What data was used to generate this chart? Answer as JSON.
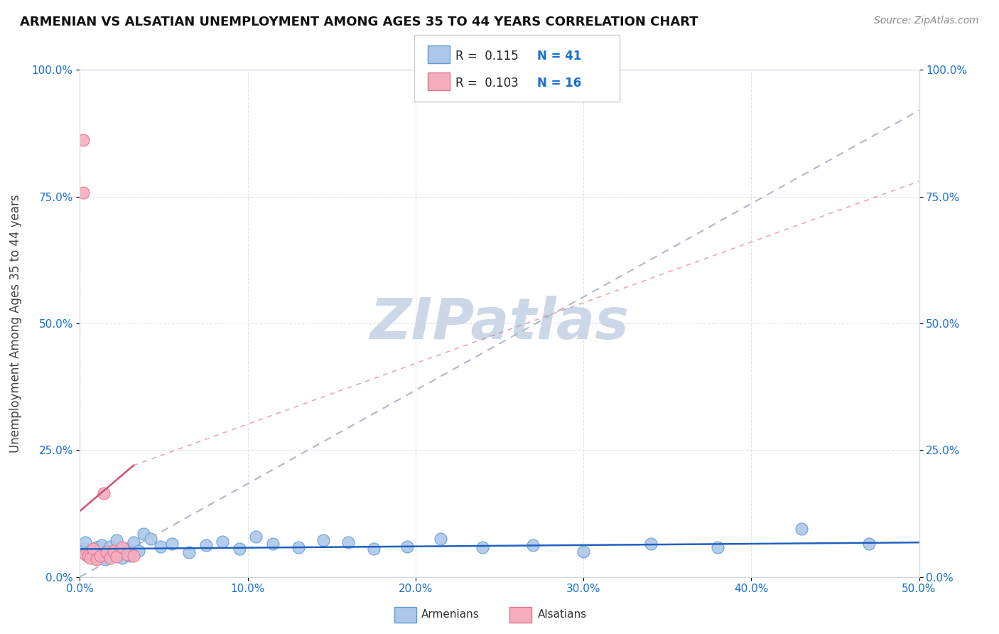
{
  "title": "ARMENIAN VS ALSATIAN UNEMPLOYMENT AMONG AGES 35 TO 44 YEARS CORRELATION CHART",
  "source": "Source: ZipAtlas.com",
  "ylabel": "Unemployment Among Ages 35 to 44 years",
  "xlim": [
    0.0,
    0.5
  ],
  "ylim": [
    0.0,
    1.0
  ],
  "xticks": [
    0.0,
    0.1,
    0.2,
    0.3,
    0.4,
    0.5
  ],
  "xticklabels": [
    "0.0%",
    "10.0%",
    "20.0%",
    "30.0%",
    "40.0%",
    "50.0%"
  ],
  "yticks": [
    0.0,
    0.25,
    0.5,
    0.75,
    1.0
  ],
  "yticklabels": [
    "0.0%",
    "25.0%",
    "50.0%",
    "75.0%",
    "100.0%"
  ],
  "right_yticklabels": [
    "100.0%",
    "75.0%",
    "50.0%",
    "25.0%",
    "0.0%"
  ],
  "armenian_color": "#adc8e8",
  "alsatian_color": "#f4aec0",
  "armenian_edge_color": "#5b9bd5",
  "alsatian_edge_color": "#e8708a",
  "armenian_line_color": "#2060c0",
  "alsatian_line_color": "#d05070",
  "trend_line_color": "#b0b8c8",
  "R_armenian": 0.115,
  "N_armenian": 41,
  "R_alsatian": 0.103,
  "N_alsatian": 16,
  "legend_text_color": "#1a6fd4",
  "watermark": "ZIPatlas",
  "watermark_color": "#ccd8e8",
  "armenians_x": [
    0.002,
    0.003,
    0.005,
    0.008,
    0.01,
    0.01,
    0.012,
    0.013,
    0.015,
    0.016,
    0.018,
    0.02,
    0.022,
    0.025,
    0.028,
    0.03,
    0.032,
    0.035,
    0.038,
    0.042,
    0.048,
    0.055,
    0.065,
    0.075,
    0.085,
    0.095,
    0.105,
    0.115,
    0.13,
    0.145,
    0.16,
    0.175,
    0.195,
    0.215,
    0.24,
    0.27,
    0.3,
    0.34,
    0.38,
    0.43,
    0.47
  ],
  "armenians_y": [
    0.055,
    0.068,
    0.048,
    0.052,
    0.038,
    0.058,
    0.042,
    0.062,
    0.035,
    0.05,
    0.06,
    0.045,
    0.072,
    0.038,
    0.055,
    0.042,
    0.068,
    0.052,
    0.085,
    0.075,
    0.06,
    0.065,
    0.048,
    0.062,
    0.07,
    0.055,
    0.08,
    0.065,
    0.058,
    0.072,
    0.068,
    0.055,
    0.06,
    0.075,
    0.058,
    0.062,
    0.05,
    0.065,
    0.058,
    0.095,
    0.065
  ],
  "alsatians_x": [
    0.002,
    0.002,
    0.003,
    0.005,
    0.006,
    0.008,
    0.01,
    0.012,
    0.014,
    0.016,
    0.018,
    0.02,
    0.022,
    0.025,
    0.028,
    0.032
  ],
  "alsatians_y": [
    0.862,
    0.758,
    0.045,
    0.042,
    0.038,
    0.055,
    0.035,
    0.042,
    0.165,
    0.048,
    0.038,
    0.052,
    0.04,
    0.058,
    0.045,
    0.042
  ],
  "background_color": "#ffffff",
  "plot_bg_color": "#ffffff",
  "grid_color": "#dde4ee"
}
